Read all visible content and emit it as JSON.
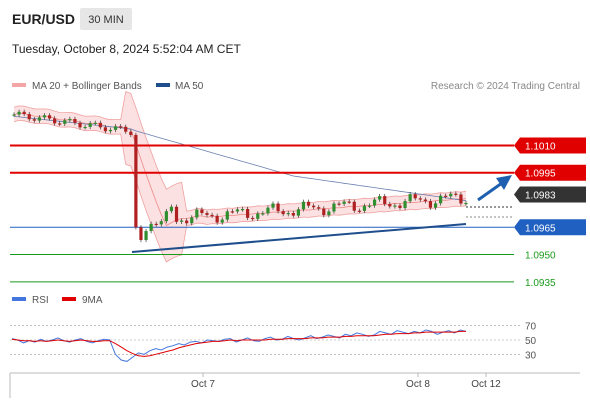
{
  "header": {
    "symbol": "EUR/USD",
    "timeframe": "30 MIN",
    "timestamp": "Tuesday, October 8, 2024 5:52:04 AM CET"
  },
  "legend": {
    "ma20_label": "MA 20 + Bollinger Bands",
    "ma50_label": "MA 50",
    "credit": "Research © 2024 Trading Central",
    "rsi_label": "RSI",
    "rsi_ma_label": "9MA"
  },
  "colors": {
    "resistance": "#e00000",
    "current": "#333333",
    "pivot": "#2060c0",
    "support": "#1a9a1a",
    "bollinger": "#f6c6c6",
    "ma50": "#1f4e8c",
    "rsi": "#4477dd",
    "rsi_ma": "#e00000"
  },
  "chart_data": {
    "type": "line",
    "title": "EUR/USD",
    "subtitle": "30 MIN",
    "y_range": [
      1.0925,
      1.1035
    ],
    "levels": [
      {
        "value": 1.101,
        "label": "1.1010",
        "kind": "resistance"
      },
      {
        "value": 1.0995,
        "label": "1.0995",
        "kind": "resistance"
      },
      {
        "value": 1.0983,
        "label": "1.0983",
        "kind": "current"
      },
      {
        "value": 1.0965,
        "label": "1.0965",
        "kind": "pivot"
      },
      {
        "value": 1.095,
        "label": "1.0950",
        "kind": "support"
      },
      {
        "value": 1.0935,
        "label": "1.0935",
        "kind": "support"
      }
    ],
    "x_ticks": [
      "Oct 7",
      "Oct 8",
      "Oct 12"
    ],
    "price_series": [
      {
        "name": "MA 20 + Bollinger Bands",
        "values": []
      },
      {
        "name": "MA 50",
        "values": []
      }
    ],
    "rsi": {
      "ticks": [
        70,
        50,
        30
      ],
      "y_range": [
        15,
        85
      ],
      "series": [
        {
          "name": "RSI",
          "values": [
            52,
            50,
            46,
            49,
            47,
            51,
            48,
            50,
            53,
            49,
            47,
            50,
            52,
            48,
            46,
            49,
            51,
            50,
            30,
            22,
            20,
            26,
            32,
            30,
            35,
            38,
            36,
            40,
            42,
            45,
            43,
            47,
            48,
            46,
            50,
            49,
            48,
            51,
            52,
            47,
            50,
            53,
            49,
            48,
            52,
            54,
            50,
            51,
            55,
            52,
            50,
            53,
            56,
            52,
            54,
            57,
            55,
            53,
            58,
            56,
            60,
            58,
            55,
            57,
            62,
            60,
            58,
            63,
            61,
            59,
            62,
            60,
            64,
            62,
            58,
            61,
            63,
            60,
            64,
            62
          ]
        },
        {
          "name": "9MA",
          "values": [
            51,
            50,
            49,
            49,
            48,
            49,
            48,
            49,
            50,
            49,
            48,
            49,
            50,
            49,
            48,
            48,
            49,
            49,
            45,
            40,
            35,
            31,
            28,
            27,
            28,
            30,
            32,
            34,
            36,
            39,
            41,
            43,
            45,
            46,
            47,
            48,
            48,
            49,
            50,
            49,
            50,
            50,
            50,
            50,
            50,
            51,
            51,
            51,
            52,
            52,
            52,
            52,
            53,
            53,
            53,
            54,
            54,
            54,
            55,
            55,
            56,
            56,
            56,
            56,
            57,
            58,
            58,
            59,
            59,
            59,
            60,
            60,
            61,
            61,
            61,
            61,
            61,
            61,
            62,
            62
          ]
        }
      ]
    }
  }
}
